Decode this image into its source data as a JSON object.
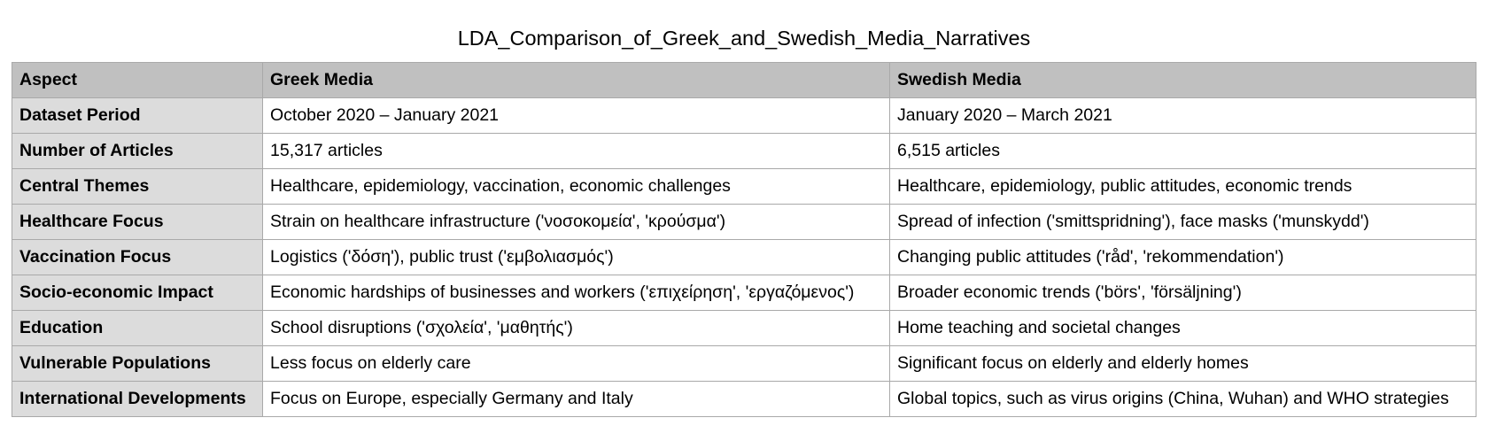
{
  "title": "LDA_Comparison_of_Greek_and_Swedish_Media_Narratives",
  "colors": {
    "header_bg": "#c0c0c0",
    "row_label_bg": "#dcdcdc",
    "cell_bg": "#ffffff",
    "border": "#a9a9a9"
  },
  "table": {
    "headers": [
      "Aspect",
      "Greek Media",
      "Swedish Media"
    ],
    "rows": [
      [
        "Dataset Period",
        "October 2020 – January 2021",
        "January 2020 – March 2021"
      ],
      [
        "Number of Articles",
        "15,317 articles",
        "6,515 articles"
      ],
      [
        "Central Themes",
        "Healthcare, epidemiology, vaccination, economic challenges",
        "Healthcare, epidemiology, public attitudes, economic trends"
      ],
      [
        "Healthcare Focus",
        "Strain on healthcare infrastructure ('νοσοκομεία', 'κρούσμα')",
        "Spread of infection ('smittspridning'), face masks ('munskydd')"
      ],
      [
        "Vaccination Focus",
        "Logistics ('δόση'), public trust ('εμβολιασμός')",
        "Changing public attitudes ('råd', 'rekommendation')"
      ],
      [
        "Socio-economic Impact",
        "Economic hardships of businesses and workers ('επιχείρηση', 'εργαζόμενος')",
        "Broader economic trends ('börs', 'försäljning')"
      ],
      [
        "Education",
        "School disruptions ('σχολεία', 'μαθητής')",
        "Home teaching and societal changes"
      ],
      [
        "Vulnerable Populations",
        "Less focus on elderly care",
        "Significant focus on elderly and elderly homes"
      ],
      [
        "International Developments",
        "Focus on Europe, especially Germany and Italy",
        "Global topics, such as virus origins (China, Wuhan) and WHO strategies"
      ]
    ]
  }
}
